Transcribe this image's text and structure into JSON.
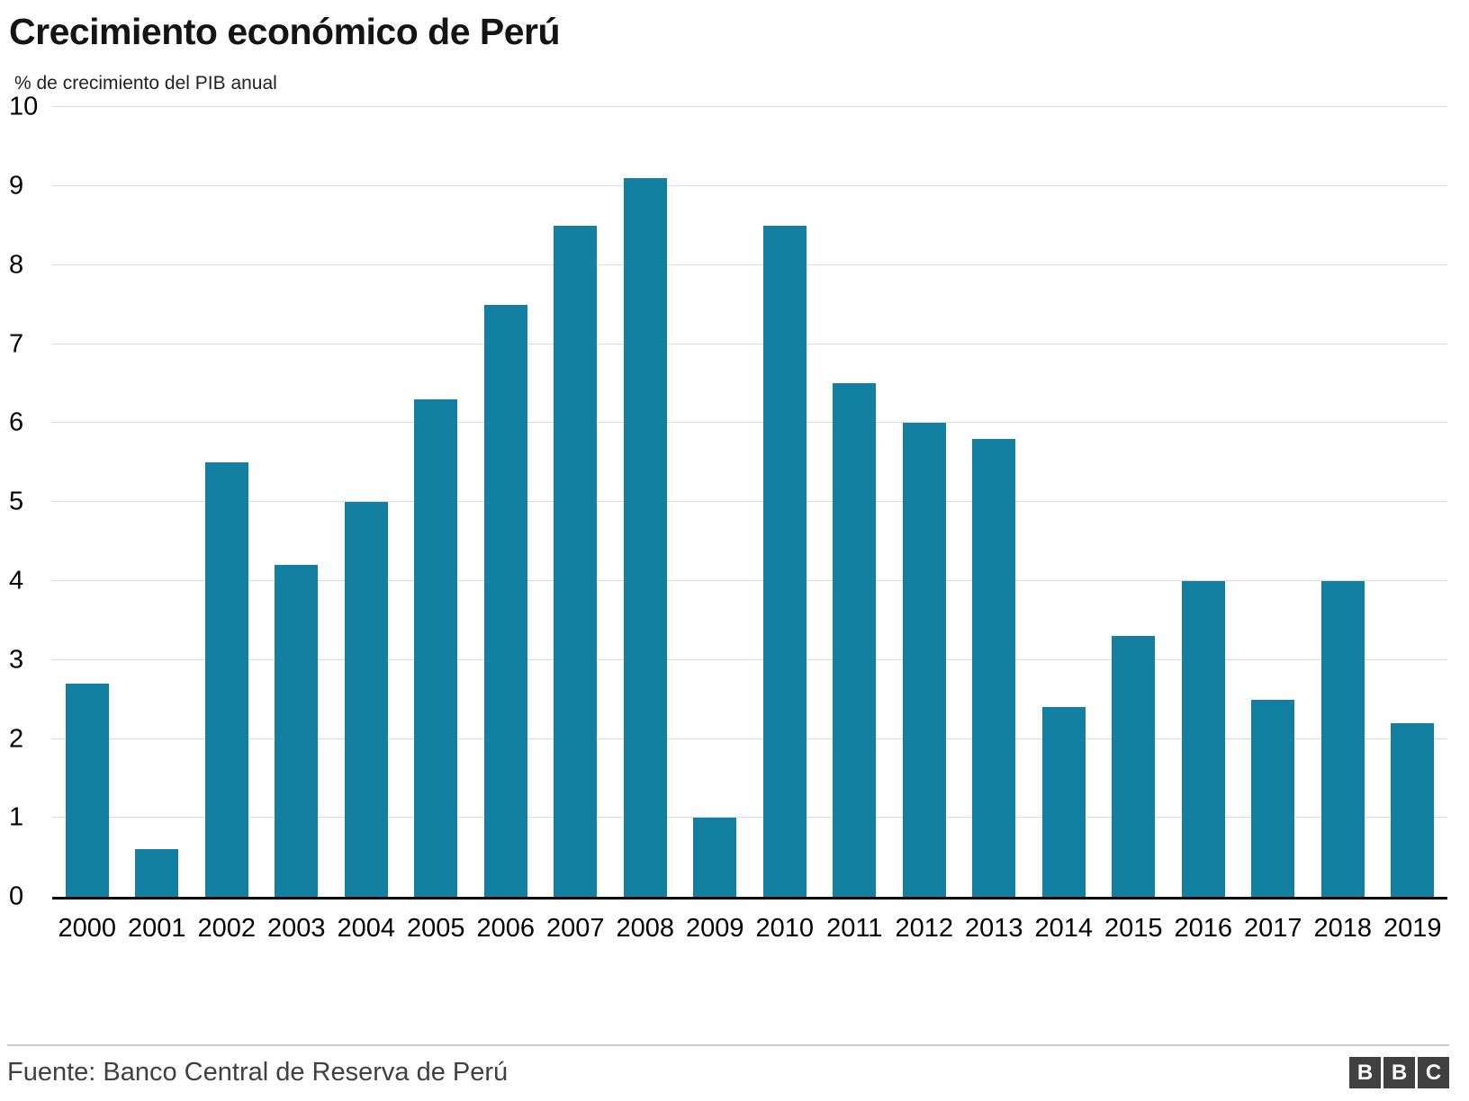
{
  "chart_data": {
    "type": "bar",
    "title": "Crecimiento económico de Perú",
    "subtitle": "% de crecimiento del PIB anual",
    "categories": [
      "2000",
      "2001",
      "2002",
      "2003",
      "2004",
      "2005",
      "2006",
      "2007",
      "2008",
      "2009",
      "2010",
      "2011",
      "2012",
      "2013",
      "2014",
      "2015",
      "2016",
      "2017",
      "2018",
      "2019"
    ],
    "values": [
      2.7,
      0.6,
      5.5,
      4.2,
      5.0,
      6.3,
      7.5,
      8.5,
      9.1,
      1.0,
      8.5,
      6.5,
      6.0,
      5.8,
      2.4,
      3.3,
      4.0,
      2.5,
      4.0,
      2.2
    ],
    "xlabel": "",
    "ylabel": "",
    "ylim": [
      0,
      10
    ],
    "ytick_step": 1,
    "grid": true,
    "legend": "none",
    "bar_color": "#1380A1",
    "gridline_color": "#dcdcdc",
    "baseline_color": "#000000"
  },
  "footer": {
    "source": "Fuente: Banco Central de Reserva de Perú",
    "logo_letters": [
      "B",
      "B",
      "C"
    ]
  }
}
